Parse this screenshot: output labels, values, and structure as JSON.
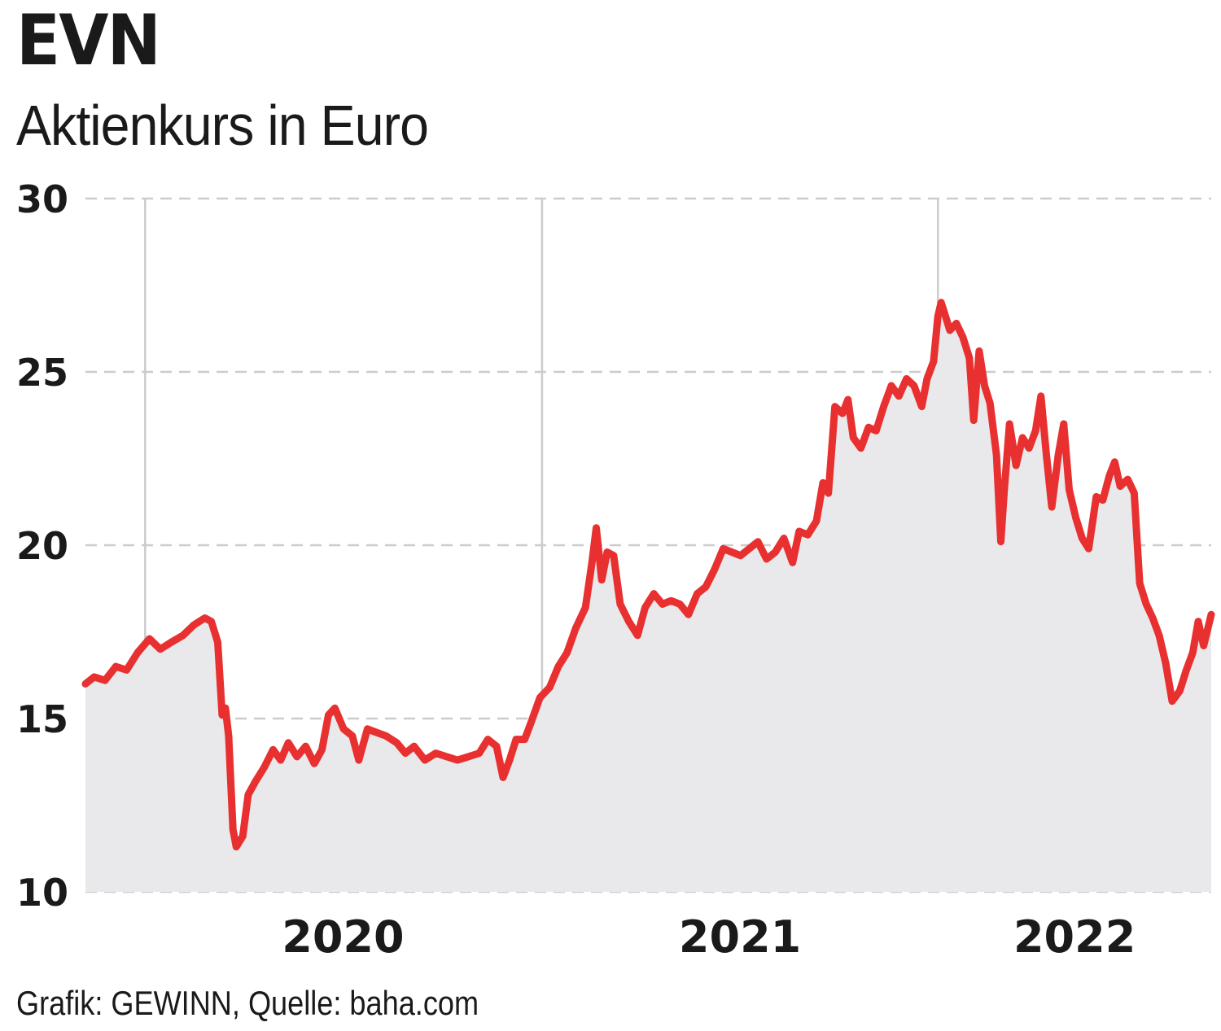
{
  "header": {
    "title": "EVN",
    "subtitle": "Aktienkurs in Euro"
  },
  "footer": {
    "source": "Grafik: GEWINN, Quelle: baha.com"
  },
  "colors": {
    "line": "#e83030",
    "area": "#e9e9eb",
    "grid": "#cccccc",
    "text": "#1a1a1a"
  },
  "chart_data": {
    "type": "area",
    "ylim": [
      10,
      30
    ],
    "yticks": [
      10,
      15,
      20,
      25,
      30
    ],
    "ytick_labels": [
      "10",
      "15",
      "20",
      "25",
      "30"
    ],
    "xlim": [
      "2019-11-07",
      "2022-09-10"
    ],
    "xticks": [
      {
        "date": "2020-01-01",
        "label": "2020"
      },
      {
        "date": "2021-01-01",
        "label": "2021"
      },
      {
        "date": "2022-01-01",
        "label": "2022"
      }
    ],
    "grid": {
      "horizontal": "dashed",
      "vertical": "solid"
    },
    "series": [
      {
        "points": [
          [
            "2019-11-07",
            16.0
          ],
          [
            "2019-11-15",
            16.2
          ],
          [
            "2019-11-25",
            16.1
          ],
          [
            "2019-12-05",
            16.5
          ],
          [
            "2019-12-15",
            16.4
          ],
          [
            "2019-12-25",
            16.9
          ],
          [
            "2020-01-05",
            17.3
          ],
          [
            "2020-01-15",
            17.0
          ],
          [
            "2020-01-25",
            17.2
          ],
          [
            "2020-02-05",
            17.4
          ],
          [
            "2020-02-15",
            17.7
          ],
          [
            "2020-02-25",
            17.9
          ],
          [
            "2020-03-02",
            17.8
          ],
          [
            "2020-03-08",
            17.2
          ],
          [
            "2020-03-12",
            15.1
          ],
          [
            "2020-03-15",
            15.3
          ],
          [
            "2020-03-18",
            14.5
          ],
          [
            "2020-03-22",
            11.8
          ],
          [
            "2020-03-25",
            11.3
          ],
          [
            "2020-03-31",
            11.6
          ],
          [
            "2020-04-05",
            12.8
          ],
          [
            "2020-04-12",
            13.2
          ],
          [
            "2020-04-20",
            13.6
          ],
          [
            "2020-04-28",
            14.1
          ],
          [
            "2020-05-05",
            13.8
          ],
          [
            "2020-05-12",
            14.3
          ],
          [
            "2020-05-20",
            13.9
          ],
          [
            "2020-05-28",
            14.2
          ],
          [
            "2020-06-05",
            13.7
          ],
          [
            "2020-06-12",
            14.1
          ],
          [
            "2020-06-18",
            15.1
          ],
          [
            "2020-06-24",
            15.3
          ],
          [
            "2020-07-02",
            14.7
          ],
          [
            "2020-07-10",
            14.5
          ],
          [
            "2020-07-16",
            13.8
          ],
          [
            "2020-07-24",
            14.7
          ],
          [
            "2020-08-01",
            14.6
          ],
          [
            "2020-08-10",
            14.5
          ],
          [
            "2020-08-20",
            14.3
          ],
          [
            "2020-08-28",
            14.0
          ],
          [
            "2020-09-05",
            14.2
          ],
          [
            "2020-09-15",
            13.8
          ],
          [
            "2020-09-25",
            14.0
          ],
          [
            "2020-10-05",
            13.9
          ],
          [
            "2020-10-15",
            13.8
          ],
          [
            "2020-10-25",
            13.9
          ],
          [
            "2020-11-04",
            14.0
          ],
          [
            "2020-11-12",
            14.4
          ],
          [
            "2020-11-20",
            14.2
          ],
          [
            "2020-11-26",
            13.3
          ],
          [
            "2020-12-02",
            13.8
          ],
          [
            "2020-12-08",
            14.4
          ],
          [
            "2020-12-16",
            14.4
          ],
          [
            "2020-12-22",
            14.9
          ],
          [
            "2020-12-30",
            15.6
          ],
          [
            "2021-01-08",
            15.9
          ],
          [
            "2021-01-16",
            16.5
          ],
          [
            "2021-01-24",
            16.9
          ],
          [
            "2021-02-01",
            17.6
          ],
          [
            "2021-02-10",
            18.2
          ],
          [
            "2021-02-16",
            19.5
          ],
          [
            "2021-02-20",
            20.5
          ],
          [
            "2021-02-25",
            19.0
          ],
          [
            "2021-03-02",
            19.8
          ],
          [
            "2021-03-08",
            19.7
          ],
          [
            "2021-03-14",
            18.3
          ],
          [
            "2021-03-22",
            17.8
          ],
          [
            "2021-03-30",
            17.4
          ],
          [
            "2021-04-06",
            18.2
          ],
          [
            "2021-04-14",
            18.6
          ],
          [
            "2021-04-22",
            18.3
          ],
          [
            "2021-04-30",
            18.4
          ],
          [
            "2021-05-08",
            18.3
          ],
          [
            "2021-05-16",
            18.0
          ],
          [
            "2021-05-24",
            18.6
          ],
          [
            "2021-06-01",
            18.8
          ],
          [
            "2021-06-09",
            19.3
          ],
          [
            "2021-06-17",
            19.9
          ],
          [
            "2021-06-25",
            19.8
          ],
          [
            "2021-07-03",
            19.7
          ],
          [
            "2021-07-11",
            19.9
          ],
          [
            "2021-07-19",
            20.1
          ],
          [
            "2021-07-27",
            19.6
          ],
          [
            "2021-08-04",
            19.8
          ],
          [
            "2021-08-12",
            20.2
          ],
          [
            "2021-08-20",
            19.5
          ],
          [
            "2021-08-26",
            20.4
          ],
          [
            "2021-09-03",
            20.3
          ],
          [
            "2021-09-11",
            20.7
          ],
          [
            "2021-09-17",
            21.8
          ],
          [
            "2021-09-22",
            21.5
          ],
          [
            "2021-09-28",
            24.0
          ],
          [
            "2021-10-05",
            23.8
          ],
          [
            "2021-10-10",
            24.2
          ],
          [
            "2021-10-15",
            23.1
          ],
          [
            "2021-10-22",
            22.8
          ],
          [
            "2021-10-29",
            23.4
          ],
          [
            "2021-11-05",
            23.3
          ],
          [
            "2021-11-12",
            24.0
          ],
          [
            "2021-11-19",
            24.6
          ],
          [
            "2021-11-26",
            24.3
          ],
          [
            "2021-12-03",
            24.8
          ],
          [
            "2021-12-10",
            24.6
          ],
          [
            "2021-12-17",
            24.0
          ],
          [
            "2021-12-22",
            24.8
          ],
          [
            "2021-12-28",
            25.3
          ],
          [
            "2022-01-01",
            26.6
          ],
          [
            "2022-01-04",
            27.0
          ],
          [
            "2022-01-08",
            26.6
          ],
          [
            "2022-01-12",
            26.2
          ],
          [
            "2022-01-18",
            26.4
          ],
          [
            "2022-01-24",
            26.0
          ],
          [
            "2022-01-30",
            25.4
          ],
          [
            "2022-02-03",
            23.6
          ],
          [
            "2022-02-08",
            25.6
          ],
          [
            "2022-02-13",
            24.6
          ],
          [
            "2022-02-18",
            24.1
          ],
          [
            "2022-02-24",
            22.6
          ],
          [
            "2022-02-28",
            20.1
          ],
          [
            "2022-03-03",
            21.5
          ],
          [
            "2022-03-08",
            23.5
          ],
          [
            "2022-03-14",
            22.3
          ],
          [
            "2022-03-20",
            23.1
          ],
          [
            "2022-03-26",
            22.8
          ],
          [
            "2022-04-01",
            23.3
          ],
          [
            "2022-04-06",
            24.3
          ],
          [
            "2022-04-11",
            22.6
          ],
          [
            "2022-04-16",
            21.1
          ],
          [
            "2022-04-22",
            22.6
          ],
          [
            "2022-04-27",
            23.5
          ],
          [
            "2022-05-02",
            21.6
          ],
          [
            "2022-05-08",
            20.8
          ],
          [
            "2022-05-14",
            20.2
          ],
          [
            "2022-05-20",
            19.9
          ],
          [
            "2022-05-27",
            21.4
          ],
          [
            "2022-06-02",
            21.3
          ],
          [
            "2022-06-08",
            22.0
          ],
          [
            "2022-06-13",
            22.4
          ],
          [
            "2022-06-18",
            21.7
          ],
          [
            "2022-06-25",
            21.9
          ],
          [
            "2022-07-01",
            21.5
          ],
          [
            "2022-07-06",
            18.9
          ],
          [
            "2022-07-12",
            18.3
          ],
          [
            "2022-07-18",
            17.9
          ],
          [
            "2022-07-24",
            17.4
          ],
          [
            "2022-07-30",
            16.6
          ],
          [
            "2022-08-05",
            15.5
          ],
          [
            "2022-08-12",
            15.8
          ],
          [
            "2022-08-18",
            16.4
          ],
          [
            "2022-08-24",
            16.9
          ],
          [
            "2022-08-29",
            17.8
          ],
          [
            "2022-09-03",
            17.1
          ],
          [
            "2022-09-10",
            18.0
          ]
        ]
      }
    ]
  }
}
